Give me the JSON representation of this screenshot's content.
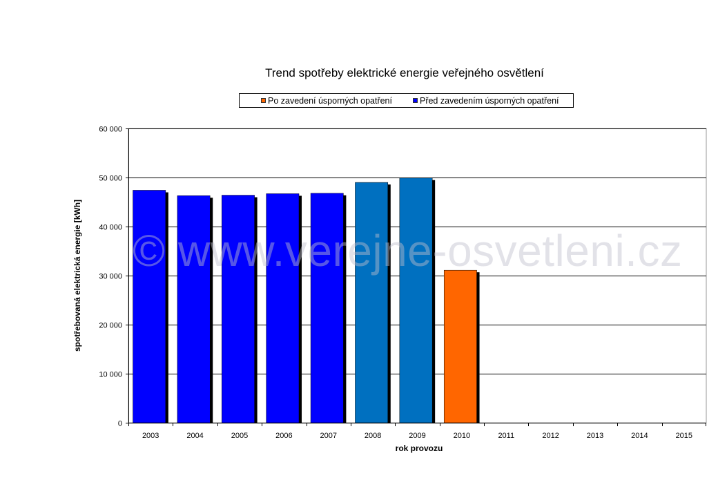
{
  "chart_data": {
    "type": "bar",
    "title": "Trend spotřeby elektrické energie veřejného osvětlení",
    "xlabel": "rok provozu",
    "ylabel": "spotřebovaná elektrická energie [kWh]",
    "ylim": [
      0,
      60000
    ],
    "yticks": [
      0,
      10000,
      20000,
      30000,
      40000,
      50000,
      60000
    ],
    "ytick_labels": [
      "0",
      "10 000",
      "20 000",
      "30 000",
      "40 000",
      "50 000",
      "60 000"
    ],
    "categories": [
      "2003",
      "2004",
      "2005",
      "2006",
      "2007",
      "2008",
      "2009",
      "2010",
      "2011",
      "2012",
      "2013",
      "2014",
      "2015"
    ],
    "values": [
      47400,
      46300,
      46400,
      46700,
      46800,
      49000,
      49900,
      31100,
      null,
      null,
      null,
      null,
      null
    ],
    "bar_colors": [
      "#0000ff",
      "#0000ff",
      "#0000ff",
      "#0000ff",
      "#0000ff",
      "#0070c0",
      "#0070c0",
      "#ff6600",
      null,
      null,
      null,
      null,
      null
    ],
    "legend": [
      {
        "label": "Po zavedení úsporných opatření",
        "color": "#ff6600"
      },
      {
        "label": "Před zavedením úsporných opatření",
        "color": "#0000ff"
      }
    ],
    "legend_position": "top",
    "grid": true
  },
  "watermark": "© www.verejne-osvetleni.cz"
}
